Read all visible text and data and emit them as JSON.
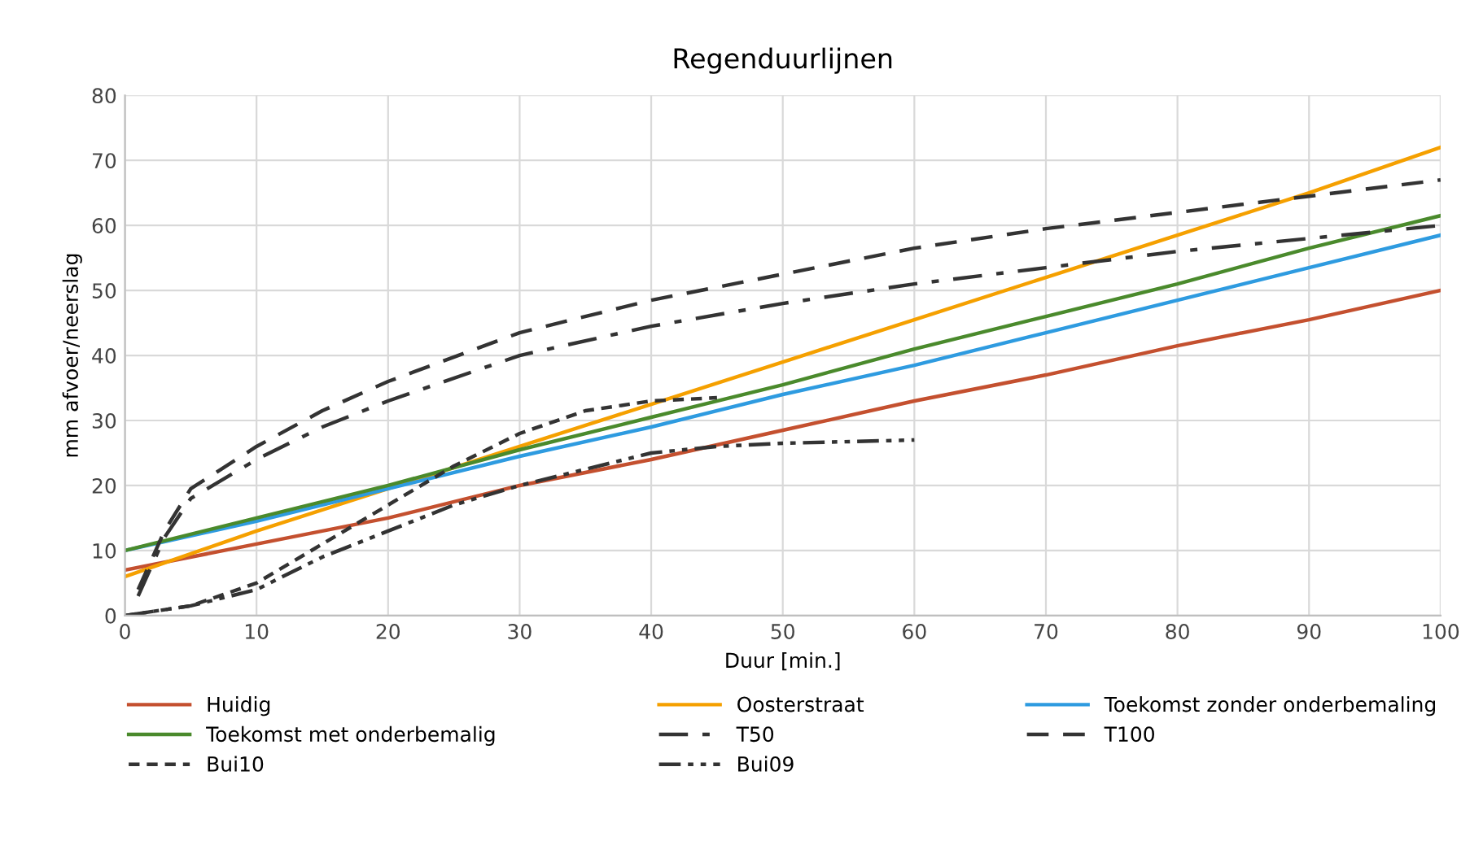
{
  "chart_data": {
    "type": "line",
    "title": "Regenduurlijnen",
    "xlabel": "Duur [min.]",
    "ylabel": "mm afvoer/neerslag",
    "xlim": [
      0,
      100
    ],
    "xticks": [
      0,
      10,
      20,
      30,
      40,
      50,
      60,
      70,
      80,
      90,
      100
    ],
    "ylim": [
      0,
      80
    ],
    "yticks": [
      0,
      10,
      20,
      30,
      40,
      50,
      60,
      70,
      80
    ],
    "grid": true,
    "legend": "bottom",
    "marker": "none",
    "series": [
      {
        "name": "Huidig",
        "color": "#c4502f",
        "line_style": "solid",
        "x": [
          0,
          10,
          20,
          30,
          40,
          50,
          60,
          70,
          80,
          90,
          100
        ],
        "values": [
          7,
          11,
          15,
          20,
          24,
          28.5,
          33,
          37,
          41.5,
          45.5,
          50
        ]
      },
      {
        "name": "Oosterstraat",
        "color": "#f5a000",
        "line_style": "solid",
        "x": [
          0,
          10,
          20,
          30,
          40,
          50,
          60,
          70,
          80,
          90,
          100
        ],
        "values": [
          6,
          13,
          19.5,
          26,
          32.5,
          39,
          45.5,
          52,
          58.5,
          65,
          72
        ]
      },
      {
        "name": "Toekomst zonder onderbemaling",
        "color": "#2e9be0",
        "line_style": "solid",
        "x": [
          0,
          10,
          20,
          30,
          40,
          50,
          60,
          70,
          80,
          90,
          100
        ],
        "values": [
          10,
          14.5,
          19.5,
          24.5,
          29,
          34,
          38.5,
          43.5,
          48.5,
          53.5,
          58.5
        ]
      },
      {
        "name": "Toekomst met onderbemalig",
        "color": "#4a8a2c",
        "line_style": "solid",
        "x": [
          0,
          10,
          20,
          30,
          40,
          50,
          60,
          70,
          80,
          90,
          100
        ],
        "values": [
          10,
          15,
          20,
          25.5,
          30.5,
          35.5,
          41,
          46,
          51,
          56.5,
          61.5
        ]
      },
      {
        "name": "T50",
        "color": "#333333",
        "line_style": "dashdot",
        "x": [
          1,
          3,
          5,
          10,
          15,
          20,
          30,
          40,
          50,
          60,
          70,
          80,
          90,
          100
        ],
        "values": [
          3,
          12,
          18,
          24,
          29,
          33,
          40,
          44.5,
          48,
          51,
          53.5,
          56,
          58,
          60
        ]
      },
      {
        "name": "T100",
        "color": "#333333",
        "line_style": "dashed",
        "x": [
          1,
          3,
          5,
          10,
          15,
          20,
          30,
          40,
          50,
          60,
          70,
          80,
          90,
          100
        ],
        "values": [
          4,
          13,
          19.5,
          26,
          31.5,
          36,
          43.5,
          48.5,
          52.5,
          56.5,
          59.5,
          62,
          64.5,
          67
        ]
      },
      {
        "name": "Bui10",
        "color": "#333333",
        "line_style": "dotted",
        "x": [
          0,
          5,
          10,
          15,
          20,
          25,
          30,
          35,
          40,
          45
        ],
        "values": [
          0,
          1.5,
          5,
          11,
          17,
          23,
          28,
          31.5,
          33,
          33.5
        ]
      },
      {
        "name": "Bui09",
        "color": "#333333",
        "line_style": "dashdotdot",
        "x": [
          0,
          5,
          10,
          15,
          20,
          25,
          30,
          35,
          40,
          45,
          50,
          60
        ],
        "values": [
          0,
          1.5,
          4,
          9,
          13,
          17,
          20,
          22.5,
          25,
          26,
          26.5,
          27
        ]
      }
    ]
  }
}
